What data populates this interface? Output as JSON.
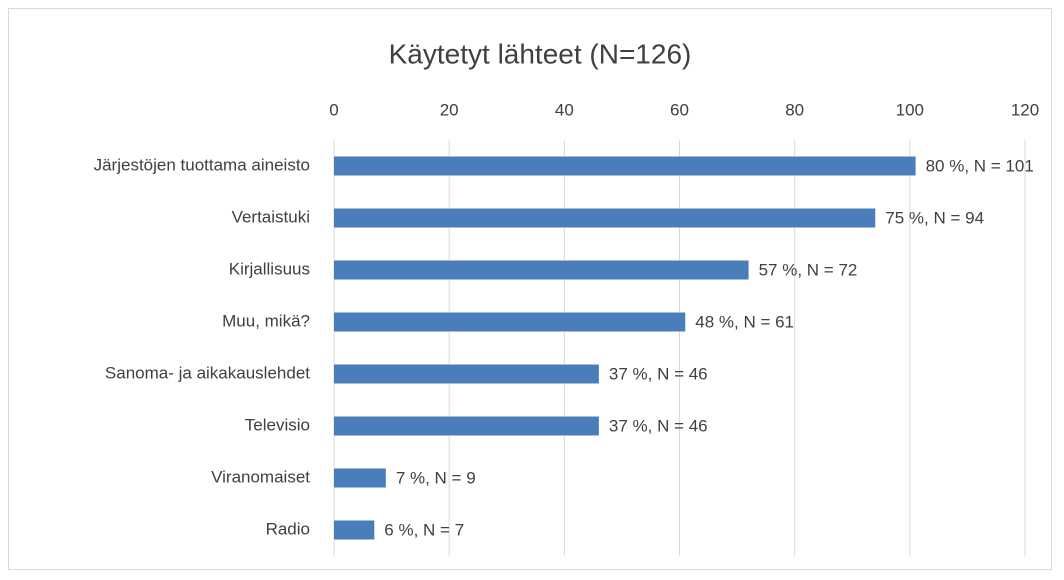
{
  "chart_data": {
    "type": "bar",
    "orientation": "horizontal",
    "title": "Käytetyt lähteet (N=126)",
    "categories": [
      "Järjestöjen tuottama aineisto",
      "Vertaistuki",
      "Kirjallisuus",
      "Muu, mikä?",
      "Sanoma- ja aikakauslehdet",
      "Televisio",
      "Viranomaiset",
      "Radio"
    ],
    "values": [
      101,
      94,
      72,
      61,
      46,
      46,
      9,
      7
    ],
    "value_labels": [
      "80 %, N = 101",
      "75 %, N = 94",
      "57 %, N = 72",
      "48 %, N = 61",
      "37 %, N = 46",
      "37 %, N = 46",
      "7 %, N = 9",
      "6 %, N = 7"
    ],
    "color": "#4a7ebb",
    "xlim": [
      0,
      120
    ],
    "xticks": [
      0,
      20,
      40,
      60,
      80,
      100,
      120
    ],
    "grid": true
  }
}
